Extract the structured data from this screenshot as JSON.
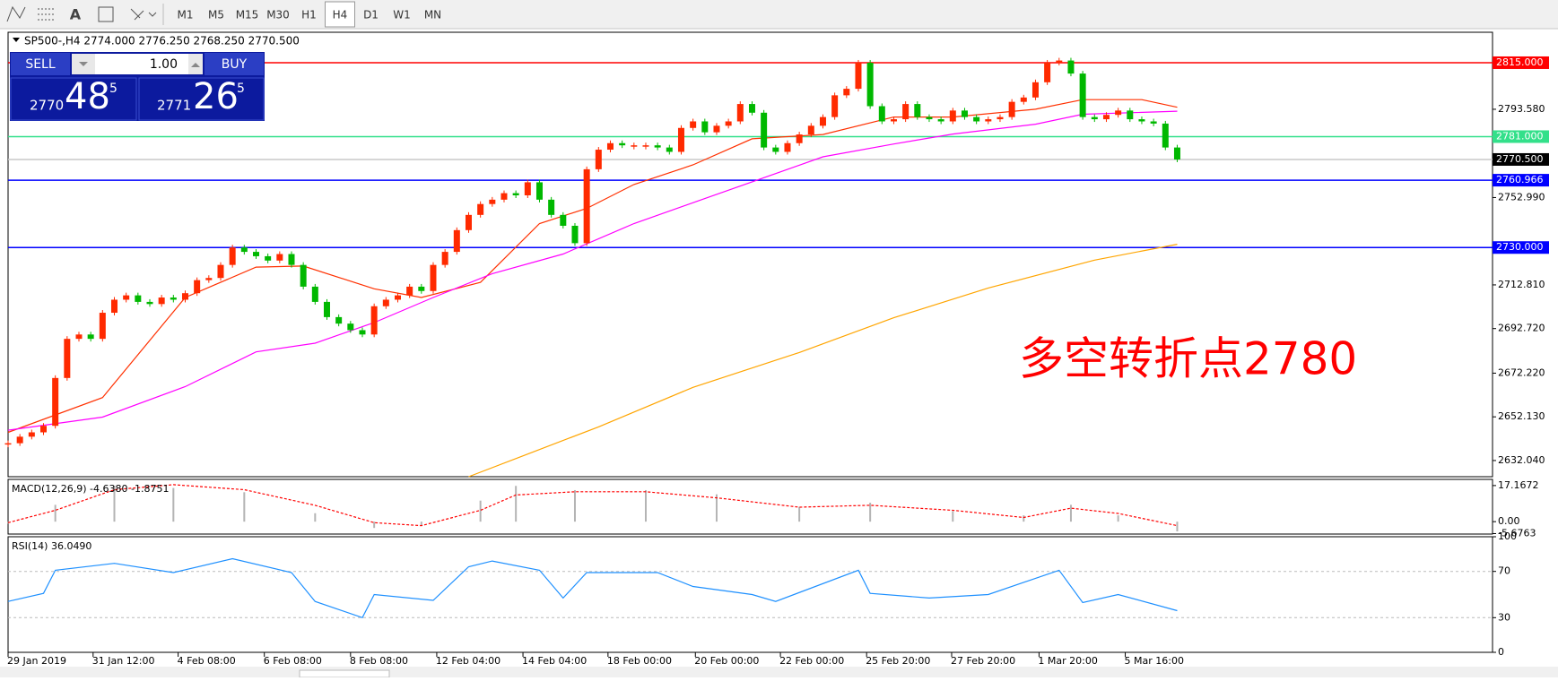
{
  "toolbar": {
    "text_tool": "A",
    "timeframes": [
      "M1",
      "M5",
      "M15",
      "M30",
      "H1",
      "H4",
      "D1",
      "W1",
      "MN"
    ],
    "active": "H4"
  },
  "trade_panel": {
    "sell": "SELL",
    "buy": "BUY",
    "volume": "1.00",
    "bid_big": "2770",
    "bid_main": "48",
    "bid_small": "5",
    "ask_big": "2771",
    "ask_main": "26",
    "ask_small": "5"
  },
  "chart_data": [
    {
      "type": "candlestick",
      "title": "SP500-,H4  2774.000 2776.250 2768.250 2770.500",
      "annotation": "多空转折点2780",
      "xlim": [
        0,
        125.7
      ],
      "xticks": [
        {
          "value": 0,
          "label": "29 Jan 2019"
        },
        {
          "value": 7.2,
          "label": "31 Jan 12:00"
        },
        {
          "value": 14.4,
          "label": "4 Feb 08:00"
        },
        {
          "value": 21.7,
          "label": "6 Feb 08:00"
        },
        {
          "value": 29,
          "label": "8 Feb 08:00"
        },
        {
          "value": 36.3,
          "label": "12 Feb 04:00"
        },
        {
          "value": 43.6,
          "label": "14 Feb 04:00"
        },
        {
          "value": 50.8,
          "label": "18 Feb 00:00"
        },
        {
          "value": 58.2,
          "label": "20 Feb 00:00"
        },
        {
          "value": 65.4,
          "label": "22 Feb 00:00"
        },
        {
          "value": 72.7,
          "label": "25 Feb 20:00"
        },
        {
          "value": 79.9,
          "label": "27 Feb 20:00"
        },
        {
          "value": 87.3,
          "label": "1 Mar 20:00"
        },
        {
          "value": 94.6,
          "label": "5 Mar 16:00"
        }
      ],
      "ylim": [
        2624.6,
        2829.0
      ],
      "yticks": [
        {
          "value": 2793.58,
          "label": "2793.580"
        },
        {
          "value": 2752.99,
          "label": "2752.990"
        },
        {
          "value": 2712.81,
          "label": "2712.810"
        },
        {
          "value": 2692.72,
          "label": "2692.720"
        },
        {
          "value": 2672.22,
          "label": "2672.220"
        },
        {
          "value": 2652.13,
          "label": "2652.130"
        },
        {
          "value": 2632.04,
          "label": "2632.040"
        }
      ],
      "up_color": "#ff2a00",
      "down_color": "#00b800",
      "closes": [
        2640,
        2643,
        2645,
        2648,
        2670,
        2688,
        2690,
        2688,
        2700,
        2706,
        2708,
        2705,
        2704,
        2707,
        2706,
        2709,
        2715,
        2716,
        2722,
        2730,
        2728,
        2726,
        2724,
        2727,
        2722,
        2712,
        2705,
        2698,
        2695,
        2692,
        2690,
        2703,
        2706,
        2708,
        2712,
        2710,
        2722,
        2728,
        2738,
        2745,
        2750,
        2752,
        2755,
        2754,
        2760,
        2752,
        2745,
        2740,
        2732,
        2766,
        2775,
        2778,
        2777,
        2777,
        2777,
        2776,
        2774,
        2785,
        2788,
        2783,
        2786,
        2788,
        2796,
        2792,
        2776,
        2774,
        2778,
        2782,
        2786,
        2790,
        2800,
        2803,
        2815,
        2795,
        2788,
        2789,
        2796,
        2790,
        2789,
        2788,
        2793,
        2790,
        2788,
        2789,
        2790,
        2797,
        2799,
        2806,
        2815,
        2816,
        2810,
        2790,
        2789,
        2791,
        2793,
        2789,
        2788,
        2787,
        2776,
        2770.5
      ],
      "series": [
        {
          "color": "#ff3000",
          "x": [
            0,
            8,
            15,
            21,
            25,
            31,
            35,
            40,
            45,
            49,
            53,
            58,
            63,
            69,
            75,
            80,
            87,
            91,
            96,
            99
          ],
          "values": [
            2645,
            2661,
            2707,
            2721,
            2721.5,
            2711,
            2707,
            2714,
            2741,
            2748,
            2759,
            2768,
            2780,
            2782,
            2790,
            2790,
            2793.6,
            2798,
            2798,
            2794.5
          ]
        },
        {
          "color": "#ff00ff",
          "x": [
            0,
            8,
            15,
            21,
            26,
            31,
            36,
            41,
            47,
            53,
            59,
            65,
            69,
            75,
            80,
            87,
            91,
            99
          ],
          "values": [
            2646,
            2652,
            2666,
            2682,
            2686,
            2695.5,
            2707,
            2718,
            2727,
            2741,
            2752.5,
            2764,
            2771.7,
            2777.6,
            2782.2,
            2786.7,
            2791.3,
            2792.7
          ]
        },
        {
          "color": "#ffa500",
          "x": [
            39,
            50,
            58,
            67,
            75,
            83,
            92,
            99
          ],
          "values": [
            2624.6,
            2647.5,
            2665.7,
            2681.7,
            2697.7,
            2711.4,
            2724.2,
            2731.5
          ]
        }
      ],
      "levels": [
        {
          "value": 2815,
          "label": "2815.000",
          "color": "#ff0000",
          "box": "#ff0000"
        },
        {
          "value": 2781,
          "label": "2781.000",
          "color": "#33e08a",
          "box": "#33e08a"
        },
        {
          "value": 2770.5,
          "label": "2770.500",
          "color": "#c8c8c8",
          "box": "#000000"
        },
        {
          "value": 2760.966,
          "label": "2760.966",
          "color": "#0000ff",
          "box": "#0000ff"
        },
        {
          "value": 2730,
          "label": "2730.000",
          "color": "#0000ff",
          "box": "#0000ff"
        }
      ]
    },
    {
      "type": "macd",
      "title": "MACD(12,26,9) -4.6380 -1.8751",
      "ylim": [
        -5.9,
        20.1
      ],
      "yticks": [
        17.1672,
        {
          "value": 0,
          "label": "0.00"
        },
        -5.6763
      ],
      "histogram": {
        "color": "#b4b4b4",
        "x": [
          0,
          4,
          9,
          14,
          20,
          26,
          31,
          35,
          40,
          43,
          48,
          54,
          60,
          67,
          73,
          80,
          86,
          90,
          94,
          99
        ],
        "values": [
          -1,
          8,
          17,
          16,
          14,
          4,
          -3,
          -2,
          10,
          17,
          15,
          15,
          13,
          7,
          9,
          5,
          3,
          8,
          3,
          -4.638
        ]
      },
      "signal": {
        "color": "#ff0000",
        "x": [
          0,
          4,
          9,
          14,
          20,
          26,
          31,
          35,
          40,
          43,
          48,
          54,
          60,
          67,
          73,
          80,
          86,
          90,
          94,
          99
        ],
        "values": [
          -0.5,
          5.4,
          15.2,
          17.6,
          15.2,
          7.8,
          -0.5,
          -1.9,
          5.4,
          12.7,
          14.2,
          14.2,
          11.3,
          6.9,
          7.8,
          5.4,
          2,
          6.4,
          3.9,
          -1.875
        ]
      }
    },
    {
      "type": "line",
      "title": "RSI(14) 36.0490",
      "ylim": [
        0,
        100
      ],
      "yticks": [
        0,
        30,
        70,
        100
      ],
      "levels": [
        30,
        70
      ],
      "series": [
        {
          "color": "#1e90ff",
          "x": [
            0,
            3,
            4,
            9,
            14,
            19,
            24,
            26,
            30,
            31,
            36,
            39,
            41,
            45,
            47,
            49,
            55,
            58,
            63,
            65,
            72,
            73,
            78,
            83,
            89,
            91,
            94,
            99
          ],
          "values": [
            44,
            51,
            71,
            77,
            69,
            81,
            69,
            44,
            30,
            50,
            45,
            74,
            79,
            71,
            47,
            69,
            69,
            57,
            50,
            44,
            71,
            51,
            47,
            50,
            71,
            43,
            50,
            36.05
          ]
        }
      ]
    }
  ]
}
